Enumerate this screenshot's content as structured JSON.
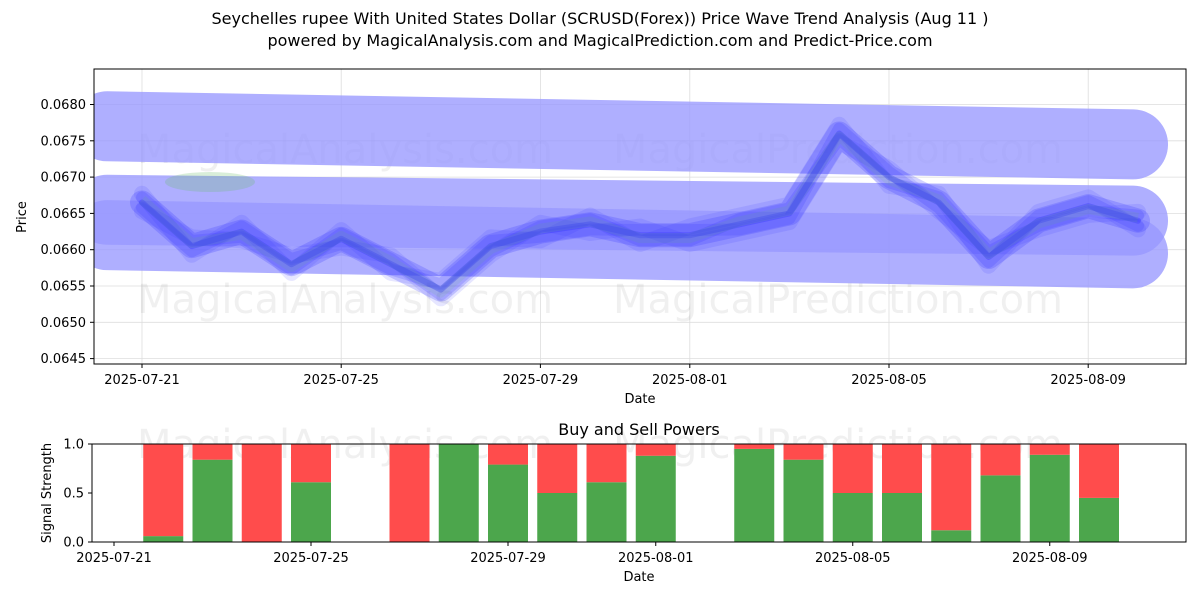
{
  "header": {
    "title_line1": "Seychelles rupee With United States Dollar (SCRUSD(Forex)) Price Wave Trend Analysis (Aug 11 )",
    "title_line2": "powered by MagicalAnalysis.com and MagicalPrediction.com and Predict-Price.com"
  },
  "watermarks": [
    "MagicalAnalysis.com",
    "MagicalPrediction.com"
  ],
  "colors": {
    "wave": "#3333ff",
    "band": "#9999ff",
    "green_wave": "#66bb66",
    "buy": "#4ca64c",
    "sell": "#ff4c4c",
    "grid": "#dddddd"
  },
  "chart_data": [
    {
      "type": "line",
      "title": "",
      "xlabel": "Date",
      "ylabel": "Price",
      "x_ticks": [
        "2025-07-21",
        "2025-07-25",
        "2025-07-29",
        "2025-08-01",
        "2025-08-05",
        "2025-08-09"
      ],
      "y_ticks": [
        "0.0645",
        "0.0650",
        "0.0655",
        "0.0660",
        "0.0665",
        "0.0670",
        "0.0675",
        "0.0680"
      ],
      "ylim": [
        0.06445,
        0.06495
      ],
      "grid": true,
      "x": [
        "2025-07-21",
        "2025-07-22",
        "2025-07-23",
        "2025-07-24",
        "2025-07-25",
        "2025-07-26",
        "2025-07-27",
        "2025-07-28",
        "2025-07-29",
        "2025-07-30",
        "2025-07-31",
        "2025-08-01",
        "2025-08-02",
        "2025-08-03",
        "2025-08-04",
        "2025-08-05",
        "2025-08-06",
        "2025-08-07",
        "2025-08-08",
        "2025-08-09",
        "2025-08-10"
      ],
      "series": [
        {
          "values": [
            0.06665,
            0.06605,
            0.06625,
            0.0658,
            0.06615,
            0.0658,
            0.06545,
            0.06605,
            0.06625,
            0.06635,
            0.0662,
            0.0662,
            0.06635,
            0.0665,
            0.0676,
            0.067,
            0.06665,
            0.0659,
            0.0664,
            0.0666,
            0.0664
          ]
        }
      ],
      "bands": [
        {
          "name": "upper",
          "start": 0.0677,
          "end": 0.06745
        },
        {
          "name": "middle",
          "start": 0.06655,
          "end": 0.0664
        },
        {
          "name": "lower",
          "start": 0.0662,
          "end": 0.06595
        }
      ]
    },
    {
      "type": "bar",
      "title": "Buy and Sell Powers",
      "xlabel": "Date",
      "ylabel": "Signal Strength",
      "x_ticks": [
        "2025-07-21",
        "2025-07-25",
        "2025-07-29",
        "2025-08-01",
        "2025-08-05",
        "2025-08-09"
      ],
      "y_ticks": [
        "0.0",
        "0.5",
        "1.0"
      ],
      "ylim": [
        0,
        1
      ],
      "categories": [
        "2025-07-22",
        "2025-07-23",
        "2025-07-24",
        "2025-07-25",
        "2025-07-27",
        "2025-07-28",
        "2025-07-29",
        "2025-07-30",
        "2025-07-31",
        "2025-08-01",
        "2025-08-03",
        "2025-08-04",
        "2025-08-05",
        "2025-08-06",
        "2025-08-07",
        "2025-08-08",
        "2025-08-09",
        "2025-08-10"
      ],
      "series": [
        {
          "name": "buy",
          "values": [
            0.06,
            0.84,
            0.0,
            0.61,
            0.0,
            1.0,
            0.79,
            0.5,
            0.61,
            0.88,
            0.95,
            0.84,
            0.5,
            0.5,
            0.12,
            0.68,
            0.89,
            0.45
          ]
        },
        {
          "name": "sell",
          "values": [
            0.94,
            0.16,
            1.0,
            0.39,
            1.0,
            0.0,
            0.21,
            0.5,
            0.39,
            0.12,
            0.05,
            0.16,
            0.5,
            0.5,
            0.88,
            0.32,
            0.11,
            0.55
          ]
        }
      ]
    }
  ]
}
